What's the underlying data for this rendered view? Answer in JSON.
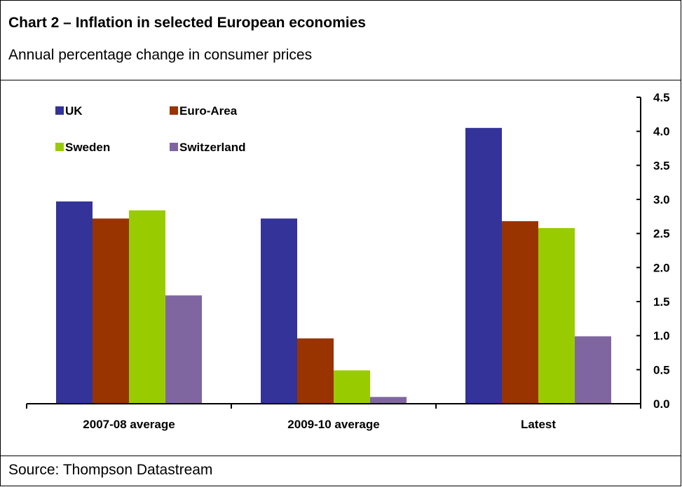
{
  "header": {
    "title": "Chart 2 – Inflation in selected European economies",
    "subtitle": "Annual percentage change in consumer prices"
  },
  "footer": {
    "source": "Source: Thompson Datastream"
  },
  "chart_data": {
    "type": "bar",
    "title": "Chart 2 – Inflation in selected European economies",
    "subtitle": "Annual percentage change in consumer prices",
    "categories": [
      "2007-08 average",
      "2009-10 average",
      "Latest"
    ],
    "series": [
      {
        "name": "UK",
        "color": "#333399",
        "values": [
          2.97,
          2.72,
          4.05
        ]
      },
      {
        "name": "Euro-Area",
        "color": "#993300",
        "values": [
          2.72,
          0.96,
          2.68
        ]
      },
      {
        "name": "Sweden",
        "color": "#99CC00",
        "values": [
          2.84,
          0.49,
          2.58
        ]
      },
      {
        "name": "Switzerland",
        "color": "#8066A0",
        "values": [
          1.59,
          0.1,
          0.99
        ]
      }
    ],
    "ylim": [
      0,
      4.5
    ],
    "yticks": [
      "0.0",
      "0.5",
      "1.0",
      "1.5",
      "2.0",
      "2.5",
      "3.0",
      "3.5",
      "4.0",
      "4.5"
    ],
    "y_axis_side": "right",
    "grid": false,
    "legend_position": "top-left"
  }
}
